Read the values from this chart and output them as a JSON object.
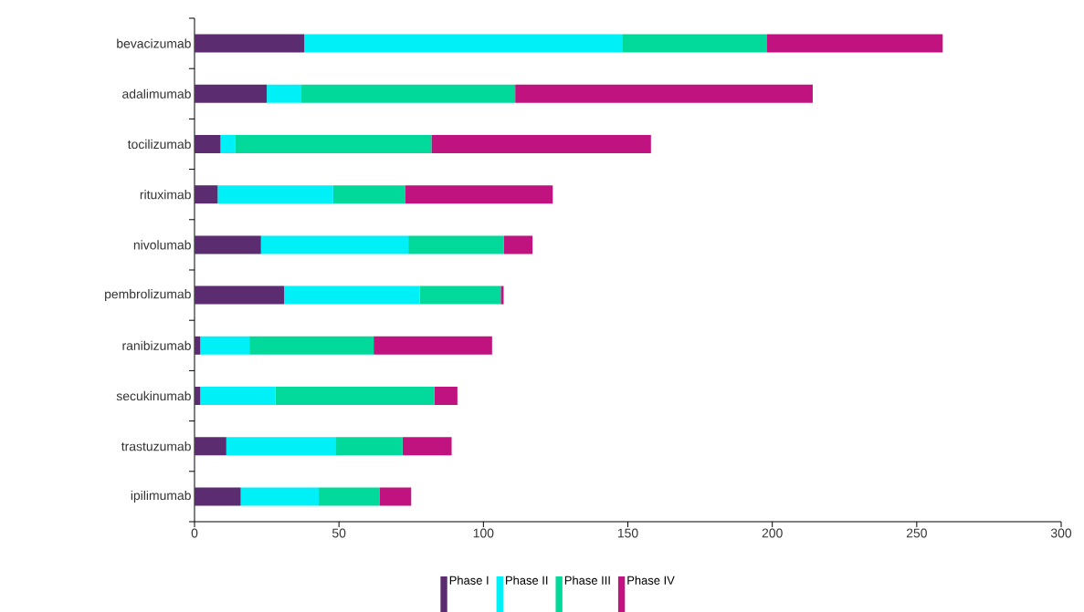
{
  "chart_data": {
    "type": "bar",
    "orientation": "horizontal",
    "stacked": true,
    "categories": [
      "bevacizumab",
      "adalimumab",
      "tocilizumab",
      "rituximab",
      "nivolumab",
      "pembrolizumab",
      "ranibizumab",
      "secukinumab",
      "trastuzumab",
      "ipilimumab"
    ],
    "series": [
      {
        "name": "Phase I",
        "color": "#5b2c6f",
        "values": [
          38,
          25,
          9,
          8,
          23,
          31,
          2,
          2,
          11,
          16
        ]
      },
      {
        "name": "Phase II",
        "color": "#00f0f8",
        "values": [
          110,
          12,
          5,
          40,
          51,
          47,
          17,
          26,
          38,
          27
        ]
      },
      {
        "name": "Phase III",
        "color": "#00d99a",
        "values": [
          50,
          74,
          68,
          25,
          33,
          28,
          43,
          55,
          23,
          21
        ]
      },
      {
        "name": "Phase IV",
        "color": "#c0137f",
        "values": [
          61,
          103,
          76,
          51,
          10,
          1,
          41,
          8,
          17,
          11
        ]
      }
    ],
    "xlim": [
      0,
      300
    ],
    "xticks": [
      0,
      50,
      100,
      150,
      200,
      250,
      300
    ],
    "grid": false,
    "legend": "bottom"
  }
}
